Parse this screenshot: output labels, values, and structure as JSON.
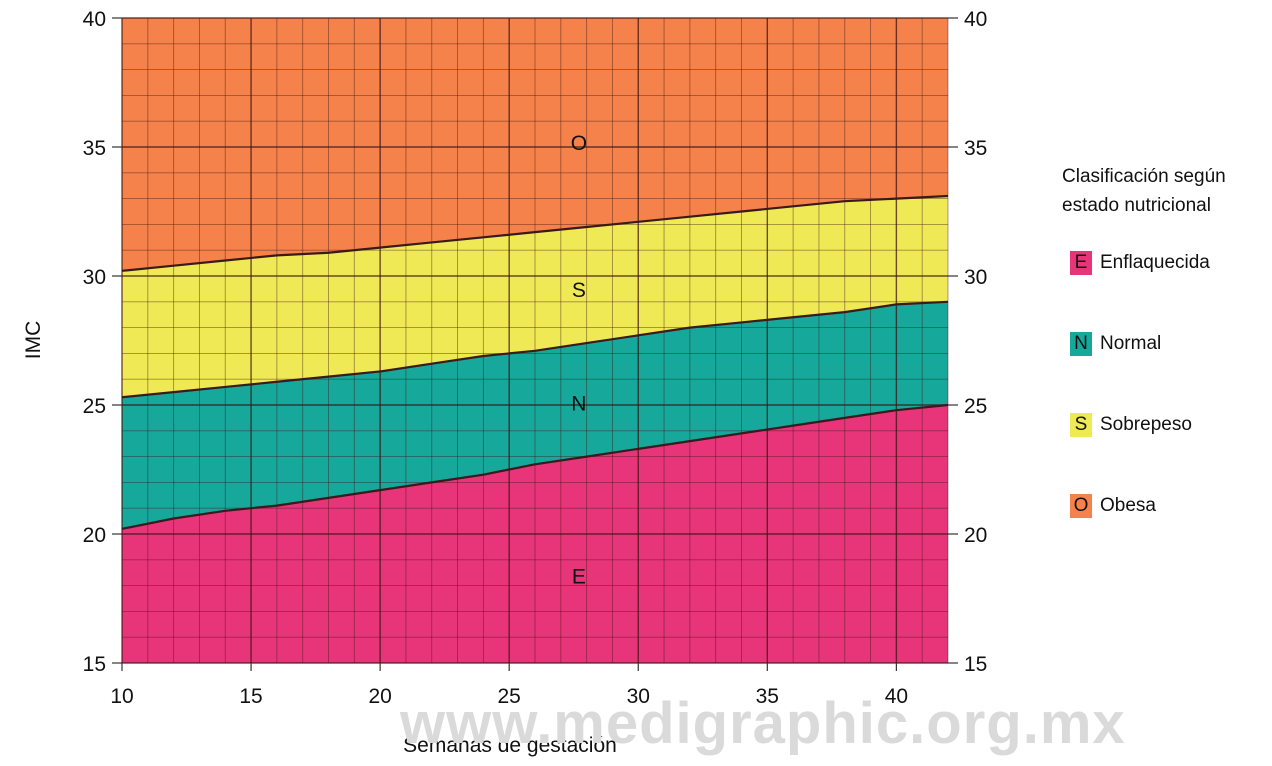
{
  "chart_data": {
    "type": "area",
    "title": "",
    "xlabel": "Semanas de gestación",
    "ylabel": "IMC",
    "xlim": [
      10,
      42
    ],
    "ylim": [
      15,
      40
    ],
    "x_ticks": [
      10,
      15,
      20,
      25,
      30,
      35,
      40
    ],
    "y_ticks": [
      15,
      20,
      25,
      30,
      35,
      40
    ],
    "grid": true,
    "legend_position": "right",
    "x": [
      10,
      12,
      14,
      16,
      18,
      20,
      22,
      24,
      26,
      28,
      30,
      32,
      34,
      36,
      38,
      40,
      42
    ],
    "boundaries": [
      {
        "between": [
          "E",
          "N"
        ],
        "values": [
          20.2,
          20.6,
          20.9,
          21.1,
          21.4,
          21.7,
          22.0,
          22.3,
          22.7,
          23.0,
          23.3,
          23.6,
          23.9,
          24.2,
          24.5,
          24.8,
          25.0
        ]
      },
      {
        "between": [
          "N",
          "S"
        ],
        "values": [
          25.3,
          25.5,
          25.7,
          25.9,
          26.1,
          26.3,
          26.6,
          26.9,
          27.1,
          27.4,
          27.7,
          28.0,
          28.2,
          28.4,
          28.6,
          28.9,
          29.0
        ]
      },
      {
        "between": [
          "S",
          "O"
        ],
        "values": [
          30.2,
          30.4,
          30.6,
          30.8,
          30.9,
          31.1,
          31.3,
          31.5,
          31.7,
          31.9,
          32.1,
          32.3,
          32.5,
          32.7,
          32.9,
          33.0,
          33.1
        ]
      }
    ],
    "regions": [
      {
        "code": "E",
        "name": "Enflaquecida",
        "color": "#e8357a",
        "label_x": 27.7,
        "label_y": 18.4
      },
      {
        "code": "N",
        "name": "Normal",
        "color": "#17a89c",
        "label_x": 27.7,
        "label_y": 25.1
      },
      {
        "code": "S",
        "name": "Sobrepeso",
        "color": "#eee955",
        "label_x": 27.7,
        "label_y": 29.5
      },
      {
        "code": "O",
        "name": "Obesa",
        "color": "#f5824a",
        "label_x": 27.7,
        "label_y": 35.2
      }
    ]
  },
  "legend": {
    "title": "Clasificación según\nestado nutricional",
    "items": [
      {
        "code": "E",
        "name": "Enflaquecida",
        "color": "#e8357a"
      },
      {
        "code": "N",
        "name": "Normal",
        "color": "#17a89c"
      },
      {
        "code": "S",
        "name": "Sobrepeso",
        "color": "#eee955"
      },
      {
        "code": "O",
        "name": "Obesa",
        "color": "#f5824a"
      }
    ]
  },
  "watermark": "www.medigraphic.org.mx"
}
